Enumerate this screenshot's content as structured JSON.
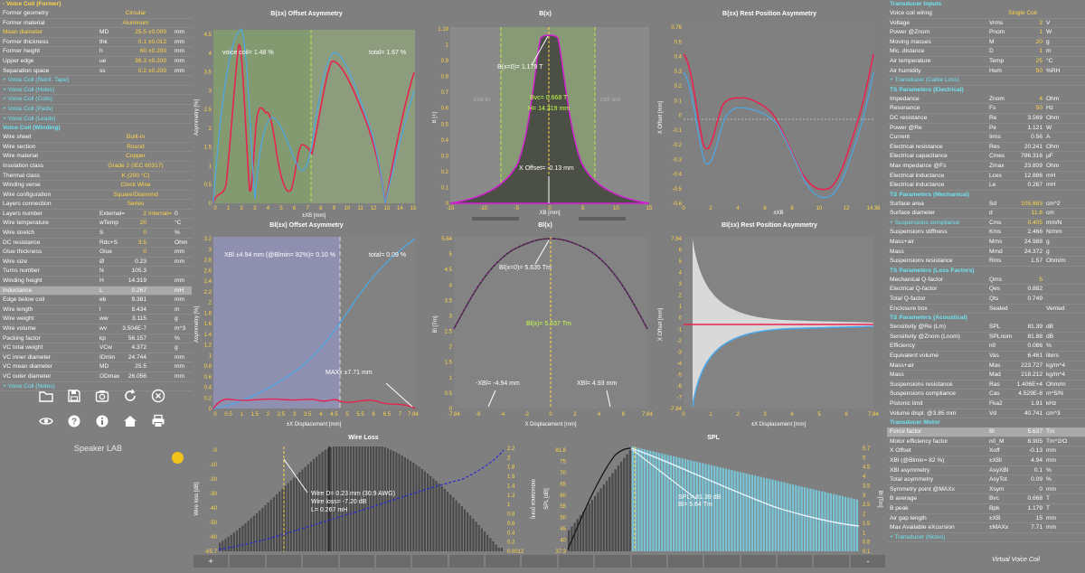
{
  "left": {
    "sections": [
      {
        "type": "hdr",
        "text": "- Voice Coil (Former)"
      },
      {
        "type": "row",
        "label": "Former geometry",
        "center": "Circular"
      },
      {
        "type": "row",
        "label": "Former material",
        "center": "Aluminum"
      },
      {
        "type": "row",
        "label": "Mean diameter",
        "sym": "MD",
        "val": "25.5",
        "tol": "±0.000",
        "unit": "mm",
        "yl": true
      },
      {
        "type": "row",
        "label": "Former thickness",
        "sym": "thk",
        "val": "0.1",
        "tol": "±0.012",
        "unit": "mm"
      },
      {
        "type": "row",
        "label": "Former height",
        "sym": "h",
        "val": "60",
        "tol": "±0.200",
        "unit": "mm"
      },
      {
        "type": "row",
        "label": "Upper edge",
        "sym": "ue",
        "val": "36.3",
        "tol": "±0.200",
        "unit": "mm"
      },
      {
        "type": "row",
        "label": "Separation space",
        "sym": "ss",
        "val": "0.2",
        "tol": "±0.200",
        "unit": "mm"
      },
      {
        "type": "sub",
        "text": "+ Voice Coil (Reinf. Tape)"
      },
      {
        "type": "sub",
        "text": "+ Voice Coil (Holes)"
      },
      {
        "type": "sub",
        "text": "+ Voice Coil (Coils)"
      },
      {
        "type": "sub",
        "text": "+ Voice Coil (Pads)"
      },
      {
        "type": "sub",
        "text": "+ Voice Coil (Leads)"
      },
      {
        "type": "hdr",
        "text": "Voice Coil (Winding)",
        "cy": true
      },
      {
        "type": "row",
        "label": "Wire sheet",
        "center": "Built-in"
      },
      {
        "type": "row",
        "label": "Wire section",
        "center": "Round"
      },
      {
        "type": "row",
        "label": "Wire material",
        "center": "Copper"
      },
      {
        "type": "row",
        "label": "Insulation class",
        "center": "Grade 2 (IEC 60317)"
      },
      {
        "type": "row",
        "label": "Thermal class",
        "center": "K (200 °C)"
      },
      {
        "type": "row",
        "label": "Winding verse",
        "center": "Clock Wise"
      },
      {
        "type": "row",
        "label": "Wire configuration",
        "center": "Square/Diamond"
      },
      {
        "type": "row",
        "label": "Layers connection",
        "center": "Series"
      },
      {
        "type": "row",
        "label": "Layers number",
        "sym": "External=",
        "val": "2",
        "tol": "Internal=",
        "unit": "0"
      },
      {
        "type": "row",
        "label": "Wire temperature",
        "sym": "wTemp",
        "val": "20",
        "unit": "°C"
      },
      {
        "type": "row",
        "label": "Wire stretch",
        "sym": "S",
        "val": "0",
        "unit": "%"
      },
      {
        "type": "row",
        "label": "DC resistance",
        "sym": "Rdc+S",
        "val": "3.5",
        "unit": "Ohm"
      },
      {
        "type": "row",
        "label": "Glue thickness",
        "sym": "Glue",
        "val": "0",
        "unit": "mm"
      },
      {
        "type": "row",
        "label": "Wire size",
        "sym": "Ø",
        "val": "0.23",
        "unit": "mm",
        "wval": true
      },
      {
        "type": "row",
        "label": "Turns number",
        "sym": "N",
        "val": "105.3",
        "wval": true
      },
      {
        "type": "row",
        "label": "Winding height",
        "sym": "H",
        "val": "14.319",
        "unit": "mm",
        "wval": true
      },
      {
        "type": "row",
        "label": "Inductance",
        "sym": "L",
        "val": "0.267",
        "unit": "mH",
        "wval": true,
        "sel": true
      },
      {
        "type": "row",
        "label": "Edge below coil",
        "sym": "eb",
        "val": "9.381",
        "unit": "mm",
        "wval": true
      },
      {
        "type": "row",
        "label": "Wire length",
        "sym": "l",
        "val": "8.434",
        "unit": "m",
        "wval": true
      },
      {
        "type": "row",
        "label": "Wire weight",
        "sym": "ww",
        "val": "3.115",
        "unit": "g",
        "wval": true
      },
      {
        "type": "row",
        "label": "Wire volume",
        "sym": "wv",
        "val": "3.504E-7",
        "unit": "m^3",
        "wval": true
      },
      {
        "type": "row",
        "label": "Packing factor",
        "sym": "kp",
        "val": "56.157",
        "unit": "%",
        "wval": true
      },
      {
        "type": "row",
        "label": "VC total weight",
        "sym": "VCw",
        "val": "4.372",
        "unit": "g",
        "wval": true
      },
      {
        "type": "row",
        "label": "VC inner diameter",
        "sym": "IDmin",
        "val": "24.744",
        "unit": "mm",
        "wval": true
      },
      {
        "type": "row",
        "label": "VC mean diameter",
        "sym": "MD",
        "val": "25.5",
        "unit": "mm",
        "wval": true
      },
      {
        "type": "row",
        "label": "VC outer diameter",
        "sym": "ODmax",
        "val": "26.056",
        "unit": "mm",
        "wval": true
      },
      {
        "type": "sub",
        "text": "+ Voice Coil (Notes)"
      }
    ],
    "brand": "Speaker LAB"
  },
  "right": {
    "sections": [
      {
        "type": "hdr",
        "text": "Transducer Inputs",
        "cy": true
      },
      {
        "type": "row",
        "label": "Voice coil wiring",
        "center": "Single Coil"
      },
      {
        "type": "row",
        "label": "Voltage",
        "sym": "Vrms",
        "val": "2",
        "unit": "V"
      },
      {
        "type": "row",
        "label": "Power @Znom",
        "sym": "Pnom",
        "val": "1",
        "unit": "W"
      },
      {
        "type": "row",
        "label": "Moving masses",
        "sym": "M",
        "val": "20",
        "unit": "g"
      },
      {
        "type": "row",
        "label": "Mic. distance",
        "sym": "D",
        "val": "1",
        "unit": "m"
      },
      {
        "type": "row",
        "label": "Air temperature",
        "sym": "Temp",
        "val": "25",
        "unit": "°C"
      },
      {
        "type": "row",
        "label": "Air humidity",
        "sym": "Hum",
        "val": "50",
        "unit": "%RH"
      },
      {
        "type": "sub",
        "text": "+ Transducer (Cable Loss)"
      },
      {
        "type": "hdr",
        "text": "TS Parameters (Electrical)",
        "cy": true
      },
      {
        "type": "row",
        "label": "Impedance",
        "sym": "Znom",
        "val": "4",
        "unit": "Ohm"
      },
      {
        "type": "row",
        "label": "Resonance",
        "sym": "Fs",
        "val": "50",
        "unit": "Hz"
      },
      {
        "type": "row",
        "label": "DC resistance",
        "sym": "Re",
        "val": "3.569",
        "unit": "Ohm",
        "wval": true
      },
      {
        "type": "row",
        "label": "Power @Re",
        "sym": "Pe",
        "val": "1.121",
        "unit": "W",
        "wval": true
      },
      {
        "type": "row",
        "label": "Current",
        "sym": "Irms",
        "val": "0.56",
        "unit": "A",
        "wval": true
      },
      {
        "type": "row",
        "label": "Electrical resistance",
        "sym": "Res",
        "val": "20.241",
        "unit": "Ohm",
        "wval": true
      },
      {
        "type": "row",
        "label": "Electrical capacitance",
        "sym": "Cmes",
        "val": "786.316",
        "unit": "µF",
        "wval": true
      },
      {
        "type": "row",
        "label": "Max impedance @Fs",
        "sym": "Zmax",
        "val": "23.809",
        "unit": "Ohm",
        "wval": true
      },
      {
        "type": "row",
        "label": "Electrical inductance",
        "sym": "Lces",
        "val": "12.886",
        "unit": "mH",
        "wval": true
      },
      {
        "type": "row",
        "label": "Electrical inductance",
        "sym": "Le",
        "val": "0.267",
        "unit": "mH",
        "wval": true
      },
      {
        "type": "hdr",
        "text": "TS Parameters (Mechanical)",
        "cy": true
      },
      {
        "type": "row",
        "label": "Surface area",
        "sym": "Sd",
        "val": "105.683",
        "unit": "cm^2"
      },
      {
        "type": "row",
        "label": "Surface diameter",
        "sym": "d",
        "val": "11.6",
        "unit": "cm"
      },
      {
        "type": "sub",
        "text": "+ Suspensions compliance",
        "tail": "Cms",
        "val": "0.405",
        "unit": "mm/N"
      },
      {
        "type": "row",
        "label": "Suspensions stiffness",
        "sym": "Kms",
        "val": "2.466",
        "unit": "N/mm",
        "wval": true
      },
      {
        "type": "row",
        "label": "Mass+air",
        "sym": "Mms",
        "val": "24.988",
        "unit": "g",
        "wval": true
      },
      {
        "type": "row",
        "label": "Mass",
        "sym": "Mmd",
        "val": "24.372",
        "unit": "g",
        "wval": true
      },
      {
        "type": "row",
        "label": "Suspensions resistance",
        "sym": "Rms",
        "val": "1.57",
        "unit": "Ohm/m",
        "wval": true
      },
      {
        "type": "hdr",
        "text": "TS Parameters (Loss Factors)",
        "cy": true
      },
      {
        "type": "row",
        "label": "Mechanical Q-factor",
        "sym": "Qms",
        "val": "5"
      },
      {
        "type": "row",
        "label": "Electrical Q-factor",
        "sym": "Qes",
        "val": "0.882",
        "wval": true
      },
      {
        "type": "row",
        "label": "Total Q-factor",
        "sym": "Qts",
        "val": "0.749",
        "wval": true
      },
      {
        "type": "row",
        "label": "Enclosure box",
        "sym": "Sealed",
        "val": "",
        "unit": "Vented"
      },
      {
        "type": "hdr",
        "text": "TS Parameters (Acoustical)",
        "cy": true
      },
      {
        "type": "row",
        "label": "Sensitivity @Re (Lm)",
        "sym": "SPL",
        "val": "81.39",
        "unit": "dB",
        "wval": true
      },
      {
        "type": "row",
        "label": "Sensitivity @Znom (Lnom)",
        "sym": "SPLnom",
        "val": "81.88",
        "unit": "dB",
        "wval": true
      },
      {
        "type": "row",
        "label": "Efficiency",
        "sym": "n0",
        "val": "0.086",
        "unit": "%",
        "wval": true
      },
      {
        "type": "row",
        "label": "Equivalent volume",
        "sym": "Vas",
        "val": "6.461",
        "unit": "liters",
        "wval": true
      },
      {
        "type": "row",
        "label": "Mass+air",
        "sym": "Mas",
        "val": "223.727",
        "unit": "kg/m^4",
        "wval": true
      },
      {
        "type": "row",
        "label": "Mass",
        "sym": "Mad",
        "val": "218.212",
        "unit": "kg/m^4",
        "wval": true
      },
      {
        "type": "row",
        "label": "Suspensions resistance",
        "sym": "Ras",
        "val": "1.406E+4",
        "unit": "Ohm/m",
        "wval": true
      },
      {
        "type": "row",
        "label": "Suspensions compliance",
        "sym": "Cas",
        "val": "4.529E-8",
        "unit": "m^5/N",
        "wval": true
      },
      {
        "type": "row",
        "label": "Pistonic limit",
        "sym": "Fka2",
        "val": "1.91",
        "unit": "kHz",
        "wval": true
      },
      {
        "type": "row",
        "label": "Volume displ. @3.85 mm",
        "sym": "Vd",
        "val": "40.741",
        "unit": "cm^3",
        "wval": true
      },
      {
        "type": "hdr",
        "text": "Transducer Motor",
        "cy": true
      },
      {
        "type": "row",
        "label": "Force factor",
        "sym": "Bl",
        "val": "5.637",
        "unit": "Tm",
        "wval": true,
        "sel": true
      },
      {
        "type": "row",
        "label": "Motor efficiency factor",
        "sym": "n0_M",
        "val": "8.905",
        "unit": "Tm^2/O",
        "wval": true
      },
      {
        "type": "row",
        "label": "X Offset",
        "sym": "Xoff",
        "val": "-0.13",
        "unit": "mm",
        "wval": true
      },
      {
        "type": "row",
        "label": "XBl (@Blmin= 82 %)",
        "sym": "±XBl",
        "val": "4.94",
        "unit": "mm",
        "wval": true
      },
      {
        "type": "row",
        "label": "XBl asymmetry",
        "sym": "AsyXBl",
        "val": "0.1",
        "unit": "%",
        "wval": true
      },
      {
        "type": "row",
        "label": "Total asymmetry",
        "sym": "AsyTot",
        "val": "0.09",
        "unit": "%",
        "wval": true
      },
      {
        "type": "row",
        "label": "Symmetry point @MAXx",
        "sym": "Xsym",
        "val": "0",
        "unit": "mm",
        "wval": true
      },
      {
        "type": "row",
        "label": "B average",
        "sym": "Bvc",
        "val": "0.668",
        "unit": "T",
        "wval": true
      },
      {
        "type": "row",
        "label": "B peak",
        "sym": "Bpk",
        "val": "1.179",
        "unit": "T",
        "wval": true
      },
      {
        "type": "row",
        "label": "Air gap length",
        "sym": "±XB",
        "val": "15",
        "unit": "mm",
        "wval": true
      },
      {
        "type": "row",
        "label": "Max Available eXcursion",
        "sym": "±MAXx",
        "val": "7.71",
        "unit": "mm",
        "wval": true
      },
      {
        "type": "sub",
        "text": "+ Transducer (Notes)"
      }
    ]
  },
  "charts": {
    "b_offset": {
      "title": "B(±x) Offset Asymmetry",
      "xlabel": "±XB [mm]",
      "ylabel": "Asymmetry [%]",
      "xticks": [
        "0",
        "1",
        "2",
        "3",
        "4",
        "5",
        "6",
        "7",
        "8",
        "9",
        "10",
        "11",
        "12",
        "13",
        "14",
        "15"
      ],
      "yticks": [
        "0",
        "0.5",
        "1",
        "1.5",
        "2",
        "2.5",
        "3",
        "3.5",
        "4",
        "4.5"
      ],
      "ann_vc": "voice coil= 1.48 %",
      "ann_total": "total= 1.67 %"
    },
    "bx": {
      "title": "B(x)",
      "xlabel": "XB [mm]",
      "ylabel": "B [T]",
      "xticks": [
        "-15",
        "-10",
        "-5",
        "0",
        "5",
        "10",
        "15"
      ],
      "yticks": [
        "0",
        "0.1",
        "0.2",
        "0.3",
        "0.4",
        "0.5",
        "0.6",
        "0.7",
        "0.8",
        "0.9",
        "1",
        "1.19"
      ],
      "ann_b0": "B(x=0)= 1.179 T",
      "ann_bvc": "Bvc= 0.668 T",
      "ann_h": "H= 14.319 mm",
      "ann_xoff": "X Offset= -0.13 mm",
      "coil_in": "coil in",
      "coil_out": "coil out"
    },
    "b_rest": {
      "title": "B(±x) Rest Position Asymmetry",
      "xlabel": "±XB",
      "ylabel": "X Offset [mm]",
      "xticks": [
        "0",
        "2",
        "4",
        "6",
        "8",
        "10",
        "12",
        "14.36"
      ],
      "yticks": [
        "-0.6",
        "-0.5",
        "-0.4",
        "-0.3",
        "-0.2",
        "-0.1",
        "0",
        "0.1",
        "0.2",
        "0.3",
        "0.4",
        "0.5",
        "0.76"
      ]
    },
    "bl_offset": {
      "title": "Bl(±x) Offset Asymmetry",
      "xlabel": "±X Displacement [mm]",
      "ylabel": "Asymmetry [%]",
      "xticks": [
        "0",
        "0.5",
        "1",
        "1.5",
        "2",
        "2.5",
        "3",
        "3.5",
        "4",
        "4.5",
        "5",
        "5.5",
        "6",
        "6.5",
        "7",
        "7.84"
      ],
      "yticks": [
        "0",
        "0.2",
        "0.4",
        "0.6",
        "0.8",
        "1",
        "1.2",
        "1.4",
        "1.6",
        "1.8",
        "2",
        "2.2",
        "2.4",
        "2.6",
        "2.8",
        "3",
        "3.2"
      ],
      "ann_xbl": "XBl ±4.94 mm (@Blmin= 82%)= 0.10 %",
      "ann_total": "total= 0.09 %",
      "ann_max": "MAXx ±7.71 mm"
    },
    "blx": {
      "title": "Bl(x)",
      "xlabel": "X Displacement [mm]",
      "ylabel": "Bl [Tm]",
      "xticks": [
        "-7.84",
        "-6",
        "-4",
        "-2",
        "0",
        "2",
        "4",
        "6",
        "7.84"
      ],
      "yticks": [
        "0",
        "0.5",
        "1",
        "1.5",
        "2",
        "2.5",
        "3",
        "3.5",
        "4",
        "4.5",
        "5",
        "5.64"
      ],
      "ann_bl0": "Bl(x=0)= 5.635 Tm",
      "ann_blx": "Bl(x)= 5.637 Tm",
      "ann_neg": "-XBl= -4.94 mm",
      "ann_pos": "XBl= 4.93 mm"
    },
    "bl_rest": {
      "title": "Bl(±x) Rest Position Asymmetry",
      "xlabel": "±X Displacement [mm]",
      "ylabel": "X Offset [mm]",
      "xticks": [
        "0",
        "1",
        "2",
        "3",
        "4",
        "5",
        "6",
        "7.84"
      ],
      "yticks": [
        "-7.84",
        "-7",
        "-6",
        "-5",
        "-4",
        "-3",
        "-2",
        "-1",
        "0",
        "1",
        "2",
        "3",
        "4",
        "5",
        "6",
        "7.84"
      ]
    },
    "wireloss": {
      "title": "Wire Loss",
      "ylabel_left": "Wire loss [dB]",
      "ylabel_right": "Inductance [mH]",
      "yticks": [
        "-65.7",
        "-60",
        "-50",
        "-40",
        "-30",
        "-20",
        "-10",
        "-0"
      ],
      "yticks_right": [
        "0.0012",
        "0.2",
        "0.4",
        "0.6",
        "0.8",
        "1",
        "1.2",
        "1.4",
        "1.6",
        "1.8",
        "2",
        "2.2"
      ],
      "ann": [
        "Wire D= 0.23 mm (30.9 AWG)",
        "Wire loss= -7.20 dB",
        "L= 0.267 mH"
      ]
    },
    "spl": {
      "title": "SPL",
      "ylabel_left": "SPL [dB]",
      "ylabel_right": "Bl [Tm]",
      "yticks": [
        "37.3",
        "40",
        "45",
        "50",
        "55",
        "60",
        "65",
        "70",
        "75",
        "81.8"
      ],
      "yticks_right": [
        "0.1",
        "0.5",
        "1",
        "1.5",
        "2",
        "2.5",
        "3",
        "3.5",
        "4",
        "4.5",
        "5",
        "5.7"
      ],
      "ann": [
        "SPL= 81.39 dB",
        "Bl= 5.64 Tm"
      ]
    }
  },
  "bottombar": {
    "tabs": [
      "+",
      "",
      "",
      "",
      "",
      "",
      "",
      "",
      "",
      "",
      "",
      "",
      "",
      "",
      "",
      "",
      "",
      "",
      "-"
    ]
  },
  "footer": "Virtual Voice Coil",
  "colors": {
    "accent": "#ffd54a",
    "cyan": "#6fe3f2",
    "red": "#e52452",
    "blue": "#4aa8e8",
    "magenta": "#d61ad6",
    "bg": "#7f7f7f",
    "plot": "#808080"
  }
}
